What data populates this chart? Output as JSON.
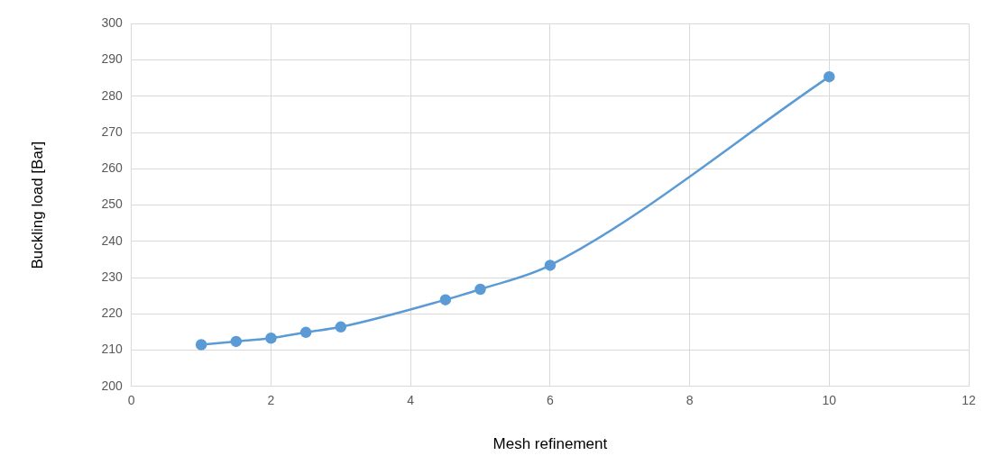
{
  "chart_data": {
    "type": "line",
    "xlabel": "Mesh refinement",
    "ylabel": "Buckling load [Bar]",
    "x": [
      1,
      1.5,
      2,
      2.5,
      3,
      4.5,
      5,
      6,
      10
    ],
    "series": [
      {
        "color": "#5b9bd5",
        "values": [
          211.5,
          212.4,
          213.3,
          214.9,
          216.4,
          223.9,
          226.8,
          233.4,
          285.4
        ]
      }
    ],
    "xlim": [
      0,
      12
    ],
    "xticks": [
      0,
      2,
      4,
      6,
      8,
      10,
      12
    ],
    "ylim": [
      200,
      300
    ],
    "yticks": [
      200,
      210,
      220,
      230,
      240,
      250,
      260,
      270,
      280,
      290,
      300
    ],
    "grid": true,
    "marker": "circle",
    "line_style": "solid",
    "legend": false
  }
}
